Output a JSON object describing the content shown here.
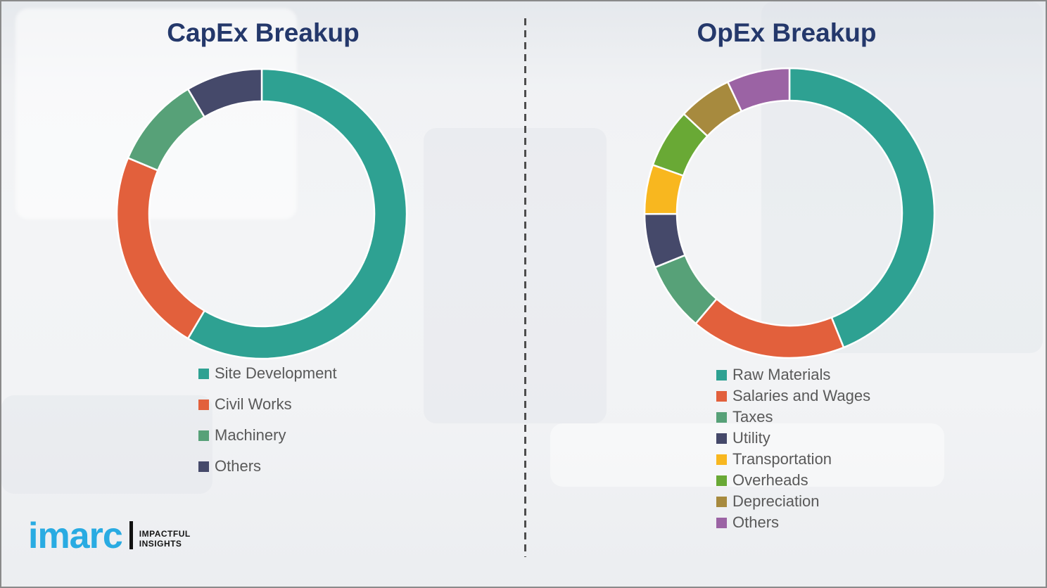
{
  "page": {
    "background_color": "#f2f3f5",
    "frame_border_color": "#8a8a8a",
    "divider_color": "#4d4d4d",
    "title_color": "#24386b",
    "legend_text_color": "#595959"
  },
  "chart_data": [
    {
      "id": "capex",
      "type": "pie",
      "donut": true,
      "title": "CapEx Breakup",
      "labels": [
        "Site Development",
        "Civil Works",
        "Machinery",
        "Others"
      ],
      "values": [
        58.5,
        22.8,
        10.2,
        8.5
      ],
      "colors": [
        "#2ea192",
        "#e2603c",
        "#57a178",
        "#45496a"
      ],
      "start_angle_deg": 0,
      "direction": "clockwise",
      "legend_position": "below-left",
      "units": "percent"
    },
    {
      "id": "opex",
      "type": "pie",
      "donut": true,
      "title": "OpEx Breakup",
      "labels": [
        "Raw Materials",
        "Salaries and Wages",
        "Taxes",
        "Utility",
        "Transportation",
        "Overheads",
        "Depreciation",
        "Others"
      ],
      "values": [
        43.9,
        17.3,
        7.7,
        6.0,
        5.5,
        6.6,
        6.0,
        7.0
      ],
      "colors": [
        "#2ea192",
        "#e2603c",
        "#57a178",
        "#45496a",
        "#f8b71f",
        "#69a935",
        "#a78a3e",
        "#9b63a4"
      ],
      "start_angle_deg": 0,
      "direction": "clockwise",
      "legend_position": "below-left",
      "units": "percent"
    }
  ],
  "logo": {
    "brand": "imarc",
    "brand_color": "#29abe2",
    "tagline_line1": "IMPACTFUL",
    "tagline_line2": "INSIGHTS"
  }
}
